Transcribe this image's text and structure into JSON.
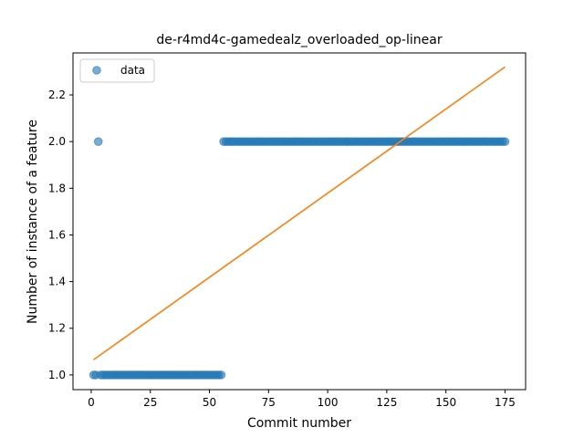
{
  "chart_data": {
    "type": "scatter",
    "title": "de-r4md4c-gamedealz_overloaded_op-linear",
    "xlabel": "Commit number",
    "ylabel": "Number of instance of a feature",
    "xlim": [
      -7.7,
      183.7
    ],
    "ylim": [
      0.937,
      2.38
    ],
    "xticks": [
      0,
      25,
      50,
      75,
      100,
      125,
      150,
      175
    ],
    "yticks": [
      1.0,
      1.2,
      1.4,
      1.6,
      1.8,
      2.0,
      2.2
    ],
    "ytick_labels": [
      "1.0",
      "1.2",
      "1.4",
      "1.6",
      "1.8",
      "2.0",
      "2.2"
    ],
    "legend": {
      "placement": "top-left",
      "entries": [
        "data"
      ]
    },
    "grid": false,
    "series": [
      {
        "name": "data",
        "kind": "points",
        "color": "#1f77b4",
        "segments": [
          {
            "x_start": 1,
            "x_end": 2,
            "y": 1.0
          },
          {
            "x_start": 3,
            "x_end": 3,
            "y": 2.0
          },
          {
            "x_start": 4,
            "x_end": 55,
            "y": 1.0
          },
          {
            "x_start": 56,
            "x_end": 175,
            "y": 2.0
          }
        ]
      },
      {
        "kind": "fit-line",
        "color": "#ff7f0e",
        "x": [
          1,
          175
        ],
        "y": [
          1.065,
          2.32
        ]
      }
    ]
  }
}
